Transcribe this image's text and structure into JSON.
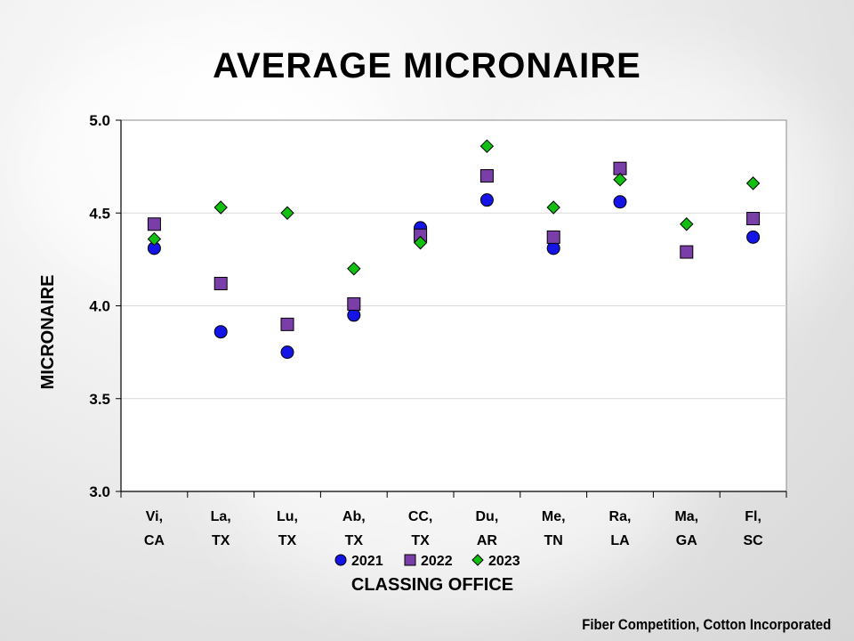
{
  "title": "AVERAGE MICRONAIRE",
  "footer": "Fiber Competition, Cotton Incorporated",
  "colors": {
    "s2021": "#1414e6",
    "s2022": "#7a3ea8",
    "s2023": "#12c012"
  },
  "chart_data": {
    "type": "scatter",
    "xlabel": "CLASSING OFFICE",
    "ylabel": "MICRONAIRE",
    "ylim": [
      3.0,
      5.0
    ],
    "yticks": [
      "3.0",
      "3.5",
      "4.0",
      "4.5",
      "5.0"
    ],
    "ytick_values": [
      3.0,
      3.5,
      4.0,
      4.5,
      5.0
    ],
    "categories": [
      [
        "Vi,",
        "CA"
      ],
      [
        "La,",
        "TX"
      ],
      [
        "Lu,",
        "TX"
      ],
      [
        "Ab,",
        "TX"
      ],
      [
        "CC,",
        "TX"
      ],
      [
        "Du,",
        "AR"
      ],
      [
        "Me,",
        "TN"
      ],
      [
        "Ra,",
        "LA"
      ],
      [
        "Ma,",
        "GA"
      ],
      [
        "Fl,",
        "SC"
      ]
    ],
    "legend_position": "bottom",
    "series": [
      {
        "name": "2021",
        "marker": "circle",
        "values": [
          4.31,
          3.86,
          3.75,
          3.95,
          4.42,
          4.57,
          4.31,
          4.56,
          null,
          4.37
        ]
      },
      {
        "name": "2022",
        "marker": "square",
        "values": [
          4.44,
          4.12,
          3.9,
          4.01,
          4.38,
          4.7,
          4.37,
          4.74,
          4.29,
          4.47
        ]
      },
      {
        "name": "2023",
        "marker": "diamond",
        "values": [
          4.36,
          4.53,
          4.5,
          4.2,
          4.34,
          4.86,
          4.53,
          4.68,
          4.44,
          4.66
        ]
      }
    ]
  }
}
